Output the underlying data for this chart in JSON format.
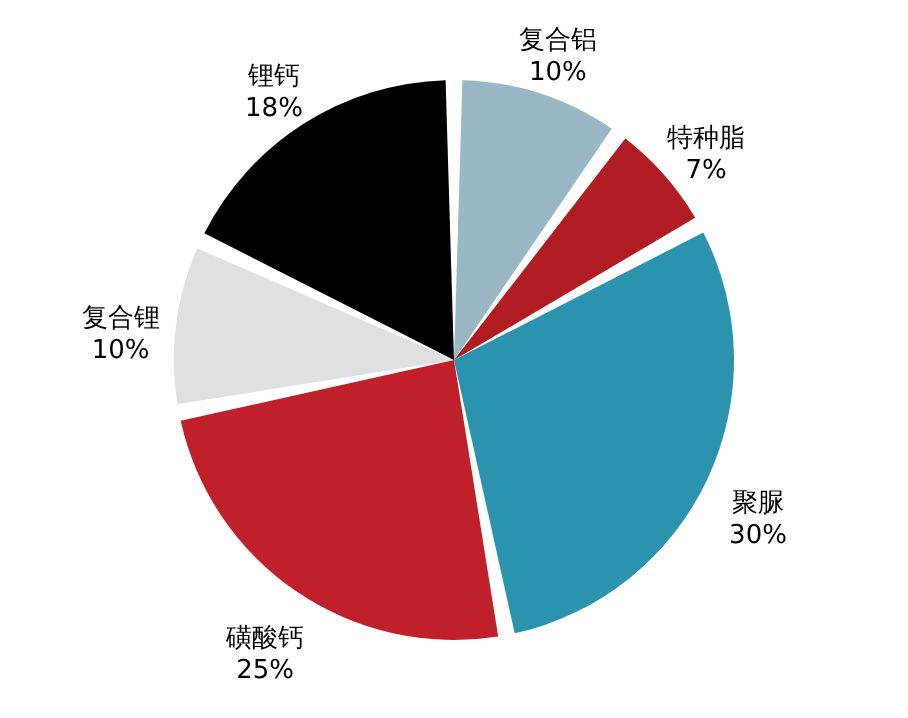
{
  "chart_data": {
    "type": "pie",
    "categories": [
      "复合铝",
      "特种脂",
      "聚脲",
      "磺酸钙",
      "复合锂",
      "锂钙"
    ],
    "values": [
      10,
      7,
      30,
      25,
      10,
      18
    ],
    "colors": [
      "#9ab8c4",
      "#b01c22",
      "#2b93ad",
      "#c0202a",
      "#e0e0e0",
      "#000000"
    ],
    "value_labels": [
      "10%",
      "7%",
      "30%",
      "25%",
      "10%",
      "18%"
    ]
  }
}
